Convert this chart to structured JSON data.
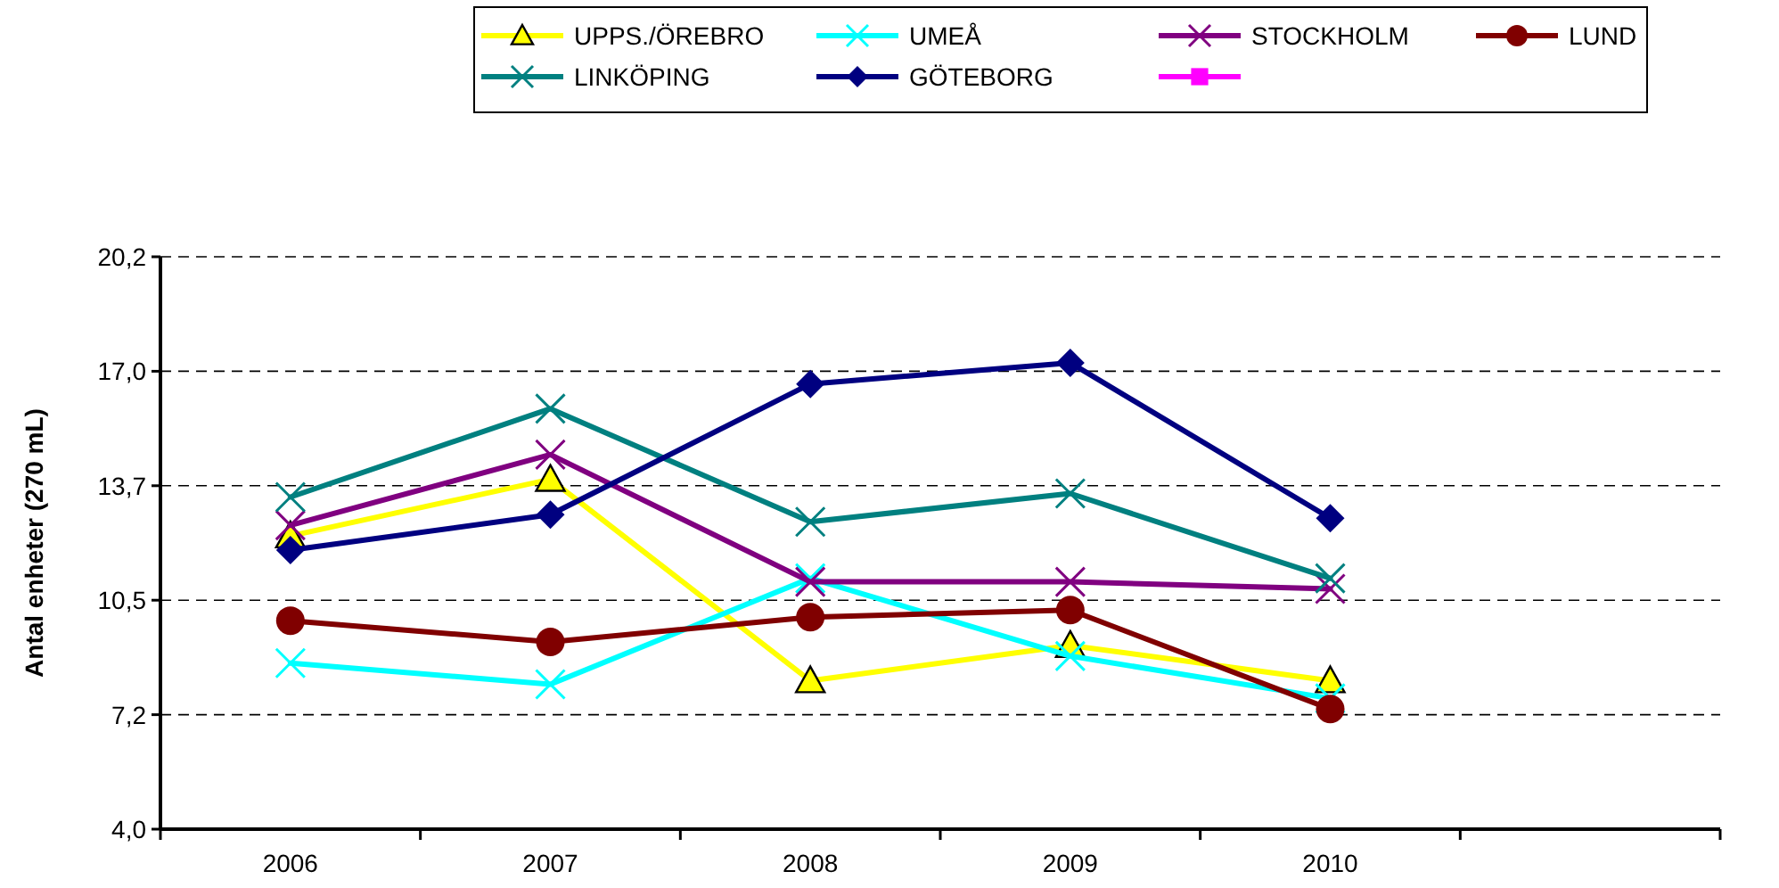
{
  "chart_data": {
    "type": "line",
    "ylabel": "Antal enheter (270 mL)",
    "categories": [
      "2006",
      "2007",
      "2008",
      "2009",
      "2010",
      null
    ],
    "ylim": [
      4.0,
      20.2
    ],
    "yticks": [
      {
        "value": 4.0,
        "label": "4,0"
      },
      {
        "value": 7.24,
        "label": "7,2"
      },
      {
        "value": 10.48,
        "label": "10,5"
      },
      {
        "value": 13.72,
        "label": "13,7"
      },
      {
        "value": 16.96,
        "label": "17,0"
      },
      {
        "value": 20.2,
        "label": "20,2"
      }
    ],
    "grid": "y",
    "legend": "top",
    "line_style": "solid",
    "series": [
      {
        "name": "UPPS./ÖREBRO",
        "color": "#ffff00",
        "marker": "triangle",
        "values": [
          12.3,
          13.9,
          8.2,
          9.2,
          8.2,
          null
        ]
      },
      {
        "name": "UMEÅ",
        "color": "#00ffff",
        "marker": "cross",
        "values": [
          8.7,
          8.1,
          11.1,
          8.9,
          7.7,
          null
        ]
      },
      {
        "name": "STOCKHOLM",
        "color": "#800080",
        "marker": "cross",
        "values": [
          12.6,
          14.6,
          11.0,
          11.0,
          10.8,
          null
        ]
      },
      {
        "name": "LUND",
        "color": "#800000",
        "marker": "circle",
        "values": [
          9.9,
          9.3,
          10.0,
          10.2,
          7.4,
          null
        ]
      },
      {
        "name": "LINKÖPING",
        "color": "#008080",
        "marker": "cross",
        "values": [
          13.4,
          15.9,
          12.7,
          13.5,
          11.1,
          null
        ]
      },
      {
        "name": "GÖTEBORG",
        "color": "#000080",
        "marker": "diamond",
        "values": [
          11.9,
          12.9,
          16.6,
          17.2,
          12.8,
          null
        ]
      },
      {
        "color": "#ff00ff",
        "marker": "square",
        "values": [
          null,
          null,
          null,
          null,
          null,
          null
        ]
      }
    ]
  }
}
